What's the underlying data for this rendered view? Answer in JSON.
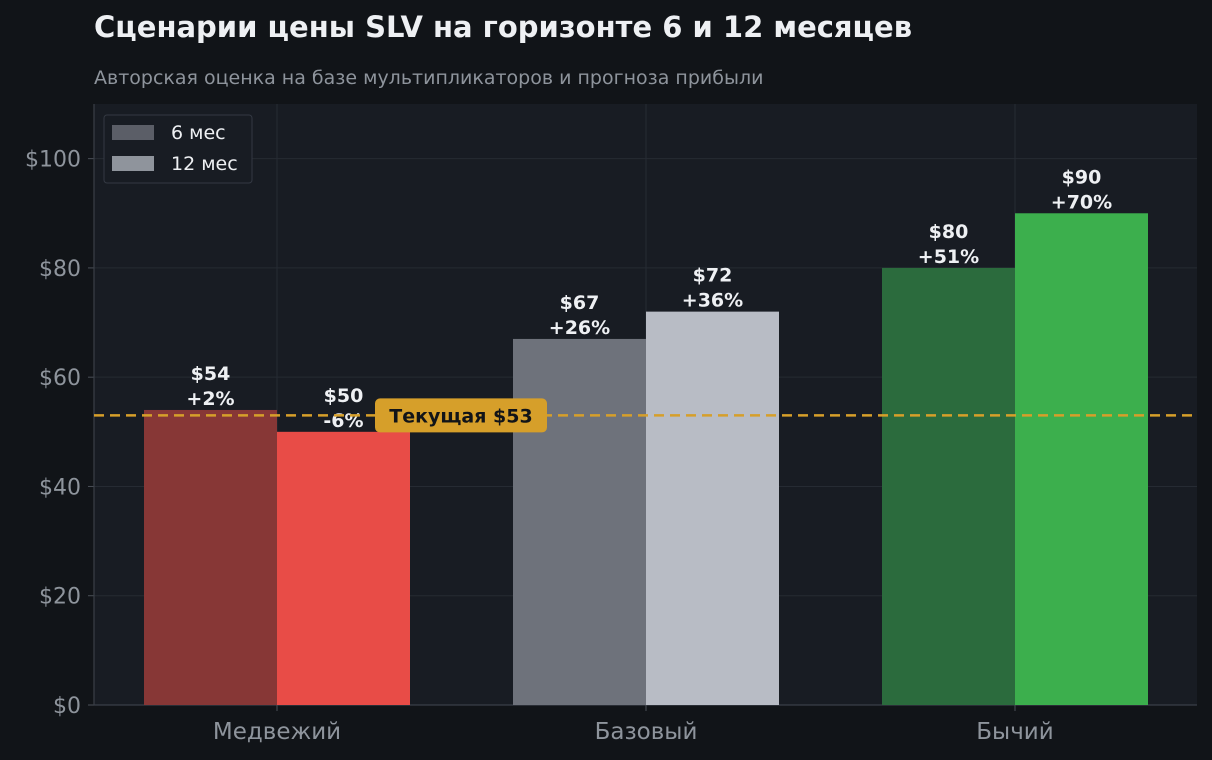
{
  "header": {
    "title": "Сценарии цены SLV на горизонте 6 и 12 месяцев",
    "subtitle": "Авторская оценка на базе мультипликаторов и прогноза прибыли"
  },
  "chart_data": {
    "type": "bar",
    "title": "Сценарии цены SLV на горизонте 6 и 12 месяцев",
    "subtitle": "Авторская оценка на базе мультипликаторов и прогноза прибыли",
    "categories": [
      "Медвежий",
      "Базовый",
      "Бычий"
    ],
    "series": [
      {
        "name": "6 мес",
        "values": [
          54,
          67,
          80
        ],
        "labels": [
          "$54\n+2%",
          "$67\n+26%",
          "$80\n+51%"
        ],
        "colors": [
          "#873736",
          "#6e727b",
          "#2b6b3d"
        ]
      },
      {
        "name": "12 мес",
        "values": [
          50,
          72,
          90
        ],
        "labels": [
          "$50\n-6%",
          "$72\n+36%",
          "$90\n+70%"
        ],
        "colors": [
          "#e84c47",
          "#b8bcc5",
          "#3caf4d"
        ]
      }
    ],
    "legend": {
      "position": "top-left",
      "items": [
        {
          "label": "6 мес",
          "color": "#5b5e67"
        },
        {
          "label": "12 мес",
          "color": "#8f949c"
        }
      ]
    },
    "reference_line": {
      "value": 53,
      "label": "Текущая $53",
      "color": "#d69f2a"
    },
    "y_ticks": [
      0,
      20,
      40,
      60,
      80,
      100
    ],
    "y_tick_labels": [
      "$0",
      "$20",
      "$40",
      "$60",
      "$80",
      "$100"
    ],
    "ylim": [
      0,
      110
    ],
    "grid": true,
    "xlabel": "",
    "ylabel": ""
  }
}
